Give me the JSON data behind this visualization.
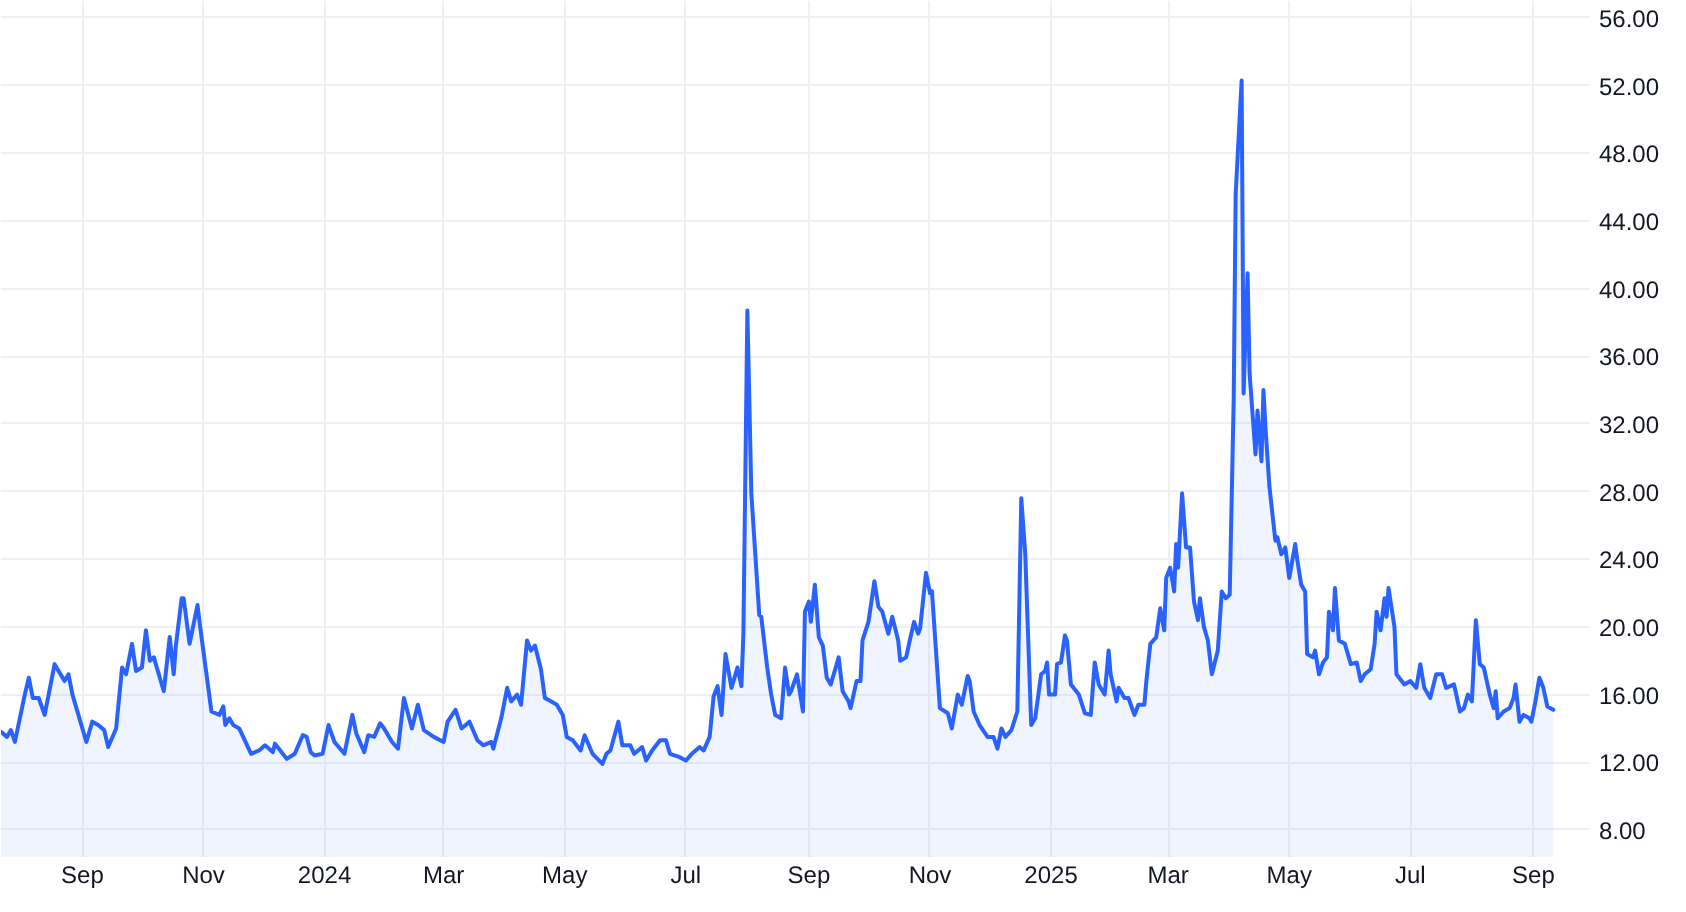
{
  "chart_data": {
    "type": "area",
    "x": [
      "2023-07-22",
      "2023-07-25",
      "2023-07-27",
      "2023-07-29",
      "2023-08-03",
      "2023-08-05",
      "2023-08-07",
      "2023-08-10",
      "2023-08-13",
      "2023-08-18",
      "2023-08-21",
      "2023-08-23",
      "2023-08-25",
      "2023-08-27",
      "2023-09-03",
      "2023-09-06",
      "2023-09-09",
      "2023-09-12",
      "2023-09-14",
      "2023-09-18",
      "2023-09-21",
      "2023-09-23",
      "2023-09-26",
      "2023-09-28",
      "2023-10-01",
      "2023-10-03",
      "2023-10-05",
      "2023-10-07",
      "2023-10-12",
      "2023-10-15",
      "2023-10-17",
      "2023-10-18",
      "2023-10-21",
      "2023-10-22",
      "2023-10-25",
      "2023-10-29",
      "2023-10-30",
      "2023-11-05",
      "2023-11-09",
      "2023-11-11",
      "2023-11-12",
      "2023-11-14",
      "2023-11-16",
      "2023-11-19",
      "2023-11-25",
      "2023-11-29",
      "2023-12-02",
      "2023-12-06",
      "2023-12-07",
      "2023-12-13",
      "2023-12-17",
      "2023-12-21",
      "2023-12-23",
      "2023-12-25",
      "2023-12-27",
      "2023-12-31",
      "2024-01-03",
      "2024-01-06",
      "2024-01-11",
      "2024-01-15",
      "2024-01-17",
      "2024-01-21",
      "2024-01-23",
      "2024-01-26",
      "2024-01-29",
      "2024-01-31",
      "2024-02-04",
      "2024-02-07",
      "2024-02-10",
      "2024-02-14",
      "2024-02-17",
      "2024-02-20",
      "2024-02-25",
      "2024-03-01",
      "2024-03-03",
      "2024-03-07",
      "2024-03-10",
      "2024-03-14",
      "2024-03-18",
      "2024-03-21",
      "2024-03-25",
      "2024-03-26",
      "2024-03-30",
      "2024-04-02",
      "2024-04-04",
      "2024-04-07",
      "2024-04-09",
      "2024-04-12",
      "2024-04-14",
      "2024-04-16",
      "2024-04-19",
      "2024-04-21",
      "2024-04-24",
      "2024-04-27",
      "2024-04-30",
      "2024-05-02",
      "2024-05-05",
      "2024-05-09",
      "2024-05-11",
      "2024-05-15",
      "2024-05-20",
      "2024-05-22",
      "2024-05-24",
      "2024-05-28",
      "2024-05-30",
      "2024-06-03",
      "2024-06-05",
      "2024-06-09",
      "2024-06-11",
      "2024-06-14",
      "2024-06-18",
      "2024-06-21",
      "2024-06-23",
      "2024-06-28",
      "2024-07-01",
      "2024-07-04",
      "2024-07-08",
      "2024-07-10",
      "2024-07-13",
      "2024-07-15",
      "2024-07-17",
      "2024-07-19",
      "2024-07-21",
      "2024-07-24",
      "2024-07-27",
      "2024-07-29",
      "2024-07-30",
      "2024-08-01",
      "2024-08-03",
      "2024-08-07",
      "2024-08-08",
      "2024-08-11",
      "2024-08-13",
      "2024-08-15",
      "2024-08-18",
      "2024-08-20",
      "2024-08-22",
      "2024-08-23",
      "2024-08-26",
      "2024-08-29",
      "2024-08-30",
      "2024-09-01",
      "2024-09-02",
      "2024-09-04",
      "2024-09-06",
      "2024-09-08",
      "2024-09-10",
      "2024-09-12",
      "2024-09-16",
      "2024-09-18",
      "2024-09-21",
      "2024-09-22",
      "2024-09-25",
      "2024-09-27",
      "2024-09-28",
      "2024-10-01",
      "2024-10-04",
      "2024-10-06",
      "2024-10-08",
      "2024-10-11",
      "2024-10-13",
      "2024-10-16",
      "2024-10-17",
      "2024-10-20",
      "2024-10-22",
      "2024-10-24",
      "2024-10-26",
      "2024-10-27",
      "2024-10-30",
      "2024-11-01",
      "2024-11-02",
      "2024-11-06",
      "2024-11-10",
      "2024-11-12",
      "2024-11-15",
      "2024-11-17",
      "2024-11-20",
      "2024-11-21",
      "2024-11-23",
      "2024-11-26",
      "2024-11-30",
      "2024-12-03",
      "2024-12-05",
      "2024-12-07",
      "2024-12-09",
      "2024-12-12",
      "2024-12-15",
      "2024-12-17",
      "2024-12-19",
      "2024-12-22",
      "2024-12-24",
      "2024-12-27",
      "2024-12-29",
      "2024-12-30",
      "2024-12-31",
      "2025-01-03",
      "2025-01-04",
      "2025-01-06",
      "2025-01-08",
      "2025-01-09",
      "2025-01-11",
      "2025-01-15",
      "2025-01-18",
      "2025-01-21",
      "2025-01-23",
      "2025-01-25",
      "2025-01-28",
      "2025-01-30",
      "2025-01-31",
      "2025-02-03",
      "2025-02-04",
      "2025-02-07",
      "2025-02-09",
      "2025-02-12",
      "2025-02-14",
      "2025-02-17",
      "2025-02-18",
      "2025-02-20",
      "2025-02-23",
      "2025-02-25",
      "2025-02-27",
      "2025-02-28",
      "2025-03-02",
      "2025-03-04",
      "2025-03-05",
      "2025-03-06",
      "2025-03-08",
      "2025-03-10",
      "2025-03-12",
      "2025-03-14",
      "2025-03-16",
      "2025-03-17",
      "2025-03-19",
      "2025-03-21",
      "2025-03-23",
      "2025-03-26",
      "2025-03-28",
      "2025-03-30",
      "2025-04-01",
      "2025-04-03",
      "2025-04-04",
      "2025-04-07",
      "2025-04-08",
      "2025-04-10",
      "2025-04-11",
      "2025-04-14",
      "2025-04-15",
      "2025-04-17",
      "2025-04-18",
      "2025-04-19",
      "2025-04-21",
      "2025-04-24",
      "2025-04-25",
      "2025-04-27",
      "2025-04-29",
      "2025-05-01",
      "2025-05-04",
      "2025-05-05",
      "2025-05-07",
      "2025-05-09",
      "2025-05-10",
      "2025-05-13",
      "2025-05-14",
      "2025-05-16",
      "2025-05-18",
      "2025-05-20",
      "2025-05-21",
      "2025-05-23",
      "2025-05-24",
      "2025-05-26",
      "2025-05-29",
      "2025-06-01",
      "2025-06-04",
      "2025-06-06",
      "2025-06-08",
      "2025-06-11",
      "2025-06-13",
      "2025-06-14",
      "2025-06-16",
      "2025-06-18",
      "2025-06-19",
      "2025-06-20",
      "2025-06-23",
      "2025-06-24",
      "2025-06-28",
      "2025-07-01",
      "2025-07-04",
      "2025-07-06",
      "2025-07-08",
      "2025-07-11",
      "2025-07-14",
      "2025-07-17",
      "2025-07-19",
      "2025-07-23",
      "2025-07-26",
      "2025-07-28",
      "2025-07-30",
      "2025-08-01",
      "2025-08-03",
      "2025-08-05",
      "2025-08-07",
      "2025-08-10",
      "2025-08-12",
      "2025-08-13",
      "2025-08-14",
      "2025-08-17",
      "2025-08-20",
      "2025-08-22",
      "2025-08-23",
      "2025-08-25",
      "2025-08-27",
      "2025-08-30",
      "2025-08-31",
      "2025-09-02",
      "2025-09-04",
      "2025-09-06",
      "2025-09-08",
      "2025-09-11"
    ],
    "series": [
      {
        "color": "#2962ff",
        "values": [
          13.8,
          13.5,
          13.9,
          13.2,
          16.0,
          17.0,
          15.8,
          15.8,
          14.8,
          17.8,
          17.2,
          16.8,
          17.2,
          16.0,
          13.2,
          14.4,
          14.2,
          13.9,
          12.9,
          14.0,
          17.6,
          17.2,
          19.0,
          17.4,
          17.6,
          19.8,
          18.0,
          18.2,
          16.2,
          19.4,
          17.2,
          18.8,
          21.7,
          21.7,
          19.0,
          21.3,
          20.3,
          15.0,
          14.8,
          15.3,
          14.2,
          14.6,
          14.2,
          14.0,
          12.5,
          12.7,
          13.0,
          12.6,
          13.1,
          12.2,
          12.5,
          13.6,
          13.5,
          12.6,
          12.4,
          12.5,
          14.2,
          13.2,
          12.5,
          14.8,
          13.7,
          12.6,
          13.6,
          13.5,
          14.3,
          14.0,
          13.2,
          12.8,
          15.8,
          14.0,
          15.4,
          13.9,
          13.5,
          13.2,
          14.4,
          15.1,
          14.0,
          14.4,
          13.3,
          13.0,
          13.2,
          12.8,
          14.6,
          16.4,
          15.6,
          16.0,
          15.4,
          19.2,
          18.6,
          18.9,
          17.5,
          15.8,
          15.6,
          15.4,
          14.8,
          13.5,
          13.3,
          12.7,
          13.6,
          12.5,
          11.9,
          12.5,
          12.7,
          14.4,
          13.0,
          13.0,
          12.5,
          12.9,
          12.1,
          12.7,
          13.3,
          13.3,
          12.5,
          12.3,
          12.1,
          12.5,
          12.9,
          12.7,
          13.5,
          15.9,
          16.5,
          14.8,
          18.4,
          16.4,
          17.6,
          16.5,
          19.6,
          38.7,
          27.9,
          20.7,
          20.6,
          17.6,
          16.0,
          14.8,
          14.6,
          17.6,
          16.0,
          16.2,
          17.2,
          15.0,
          20.9,
          21.5,
          20.3,
          22.5,
          19.4,
          18.9,
          17.0,
          16.6,
          18.2,
          16.2,
          15.6,
          15.2,
          16.8,
          16.8,
          19.2,
          20.3,
          22.7,
          21.2,
          20.9,
          19.6,
          20.6,
          19.2,
          18.0,
          18.2,
          19.3,
          20.3,
          19.6,
          19.9,
          23.2,
          22.0,
          22.1,
          15.2,
          14.9,
          14.0,
          16.0,
          15.4,
          17.1,
          16.8,
          15.0,
          14.2,
          13.5,
          13.5,
          12.8,
          14.0,
          13.5,
          13.9,
          15.0,
          27.6,
          24.3,
          14.2,
          14.6,
          17.2,
          17.4,
          17.9,
          16.0,
          16.0,
          17.8,
          17.9,
          19.5,
          19.2,
          16.6,
          16.0,
          14.9,
          14.8,
          17.9,
          16.6,
          16.0,
          18.6,
          17.2,
          15.6,
          16.4,
          15.8,
          15.8,
          14.8,
          15.4,
          15.4,
          16.8,
          19.0,
          19.4,
          21.1,
          19.8,
          22.9,
          23.5,
          22.1,
          24.9,
          23.5,
          27.9,
          24.7,
          24.7,
          21.5,
          20.4,
          21.7,
          20.0,
          19.2,
          17.2,
          18.6,
          22.1,
          21.7,
          21.9,
          33.4,
          45.6,
          52.3,
          33.8,
          40.9,
          35.0,
          30.2,
          32.8,
          29.8,
          34.0,
          31.8,
          28.3,
          25.1,
          25.3,
          24.3,
          24.7,
          22.9,
          24.9,
          24.0,
          22.5,
          22.1,
          18.4,
          18.2,
          18.6,
          17.2,
          17.9,
          18.2,
          20.9,
          19.8,
          22.3,
          19.2,
          19.0,
          17.8,
          17.9,
          16.8,
          17.2,
          17.5,
          19.0,
          20.9,
          19.8,
          21.7,
          20.6,
          22.3,
          20.0,
          17.2,
          16.6,
          16.8,
          16.4,
          17.8,
          16.4,
          15.8,
          17.2,
          17.2,
          16.4,
          16.6,
          15.0,
          15.2,
          16.0,
          15.6,
          20.4,
          17.8,
          17.6,
          16.0,
          15.2,
          16.2,
          14.6,
          15.0,
          15.2,
          15.8,
          16.6,
          14.4,
          14.8,
          14.6,
          14.4,
          15.6,
          17.0,
          16.4,
          15.3,
          15.1
        ]
      }
    ],
    "xlim": [
      "2023-07-22",
      "2025-09-29"
    ],
    "ylim": [
      6.4,
      57.0
    ],
    "xticks": [
      {
        "value": "2023-09-01",
        "label": "Sep"
      },
      {
        "value": "2023-11-01",
        "label": "Nov"
      },
      {
        "value": "2024-01-01",
        "label": "2024"
      },
      {
        "value": "2024-03-01",
        "label": "Mar"
      },
      {
        "value": "2024-05-01",
        "label": "May"
      },
      {
        "value": "2024-07-01",
        "label": "Jul"
      },
      {
        "value": "2024-09-01",
        "label": "Sep"
      },
      {
        "value": "2024-11-01",
        "label": "Nov"
      },
      {
        "value": "2025-01-01",
        "label": "2025"
      },
      {
        "value": "2025-03-01",
        "label": "Mar"
      },
      {
        "value": "2025-05-01",
        "label": "May"
      },
      {
        "value": "2025-07-01",
        "label": "Jul"
      },
      {
        "value": "2025-09-01",
        "label": "Sep"
      }
    ],
    "yticks": [
      {
        "value": 8,
        "label": "8.00"
      },
      {
        "value": 12,
        "label": "12.00"
      },
      {
        "value": 16,
        "label": "16.00"
      },
      {
        "value": 20,
        "label": "20.00"
      },
      {
        "value": 24,
        "label": "24.00"
      },
      {
        "value": 28,
        "label": "28.00"
      },
      {
        "value": 32,
        "label": "32.00"
      },
      {
        "value": 36,
        "label": "36.00"
      },
      {
        "value": 40,
        "label": "40.00"
      },
      {
        "value": 44,
        "label": "44.00"
      },
      {
        "value": 48,
        "label": "48.00"
      },
      {
        "value": 52,
        "label": "52.00"
      },
      {
        "value": 56,
        "label": "56.00"
      }
    ],
    "grid": true
  }
}
